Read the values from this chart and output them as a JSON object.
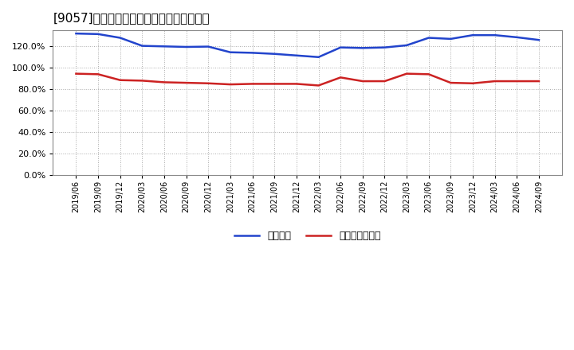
{
  "title": "[9057]　固定比率、固定長期適合率の推移",
  "title_fontsize": 11,
  "background_color": "#ffffff",
  "plot_bg_color": "#ffffff",
  "grid_color": "#aaaaaa",
  "x_labels": [
    "2019/06",
    "2019/09",
    "2019/12",
    "2020/03",
    "2020/06",
    "2020/09",
    "2020/12",
    "2021/03",
    "2021/06",
    "2021/09",
    "2021/12",
    "2022/03",
    "2022/06",
    "2022/09",
    "2022/12",
    "2023/03",
    "2023/06",
    "2023/09",
    "2023/12",
    "2024/03",
    "2024/06",
    "2024/09"
  ],
  "fixed_ratio": [
    132.0,
    131.5,
    128.0,
    120.5,
    120.0,
    119.5,
    119.8,
    114.5,
    114.0,
    113.0,
    111.5,
    110.0,
    119.0,
    118.5,
    119.0,
    121.0,
    128.0,
    127.0,
    130.5,
    130.5,
    128.5,
    126.0
  ],
  "fixed_long_ratio": [
    94.5,
    94.0,
    88.5,
    88.0,
    86.5,
    86.0,
    85.5,
    84.5,
    85.0,
    85.0,
    85.0,
    83.5,
    91.0,
    87.5,
    87.5,
    94.5,
    94.0,
    86.0,
    85.5,
    87.5,
    87.5,
    87.5
  ],
  "line_color_blue": "#2244cc",
  "line_color_red": "#cc2222",
  "ylim": [
    0,
    135
  ],
  "yticks": [
    0,
    20,
    40,
    60,
    80,
    100,
    120
  ],
  "legend_blue": "固定比率",
  "legend_red": "固定長期適合率"
}
